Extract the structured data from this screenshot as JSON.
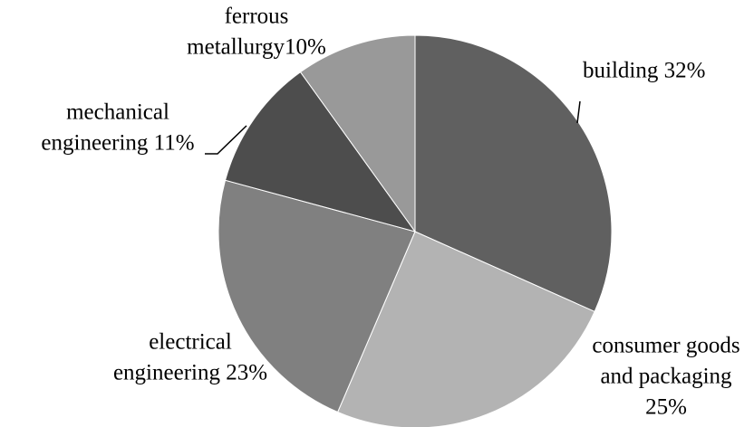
{
  "chart_data": {
    "type": "pie",
    "values": [
      32,
      25,
      23,
      11,
      10
    ],
    "value_labels": [
      [
        "building 32%"
      ],
      [
        "consumer goods",
        "and packaging",
        "25%"
      ],
      [
        "electrical",
        "engineering  23%"
      ],
      [
        "mechanical",
        "engineering 11%"
      ],
      [
        "ferrous",
        "metallurgy10%"
      ]
    ],
    "colors": [
      "#606060",
      "#b3b3b3",
      "#808080",
      "#4d4d4d",
      "#999999"
    ]
  }
}
